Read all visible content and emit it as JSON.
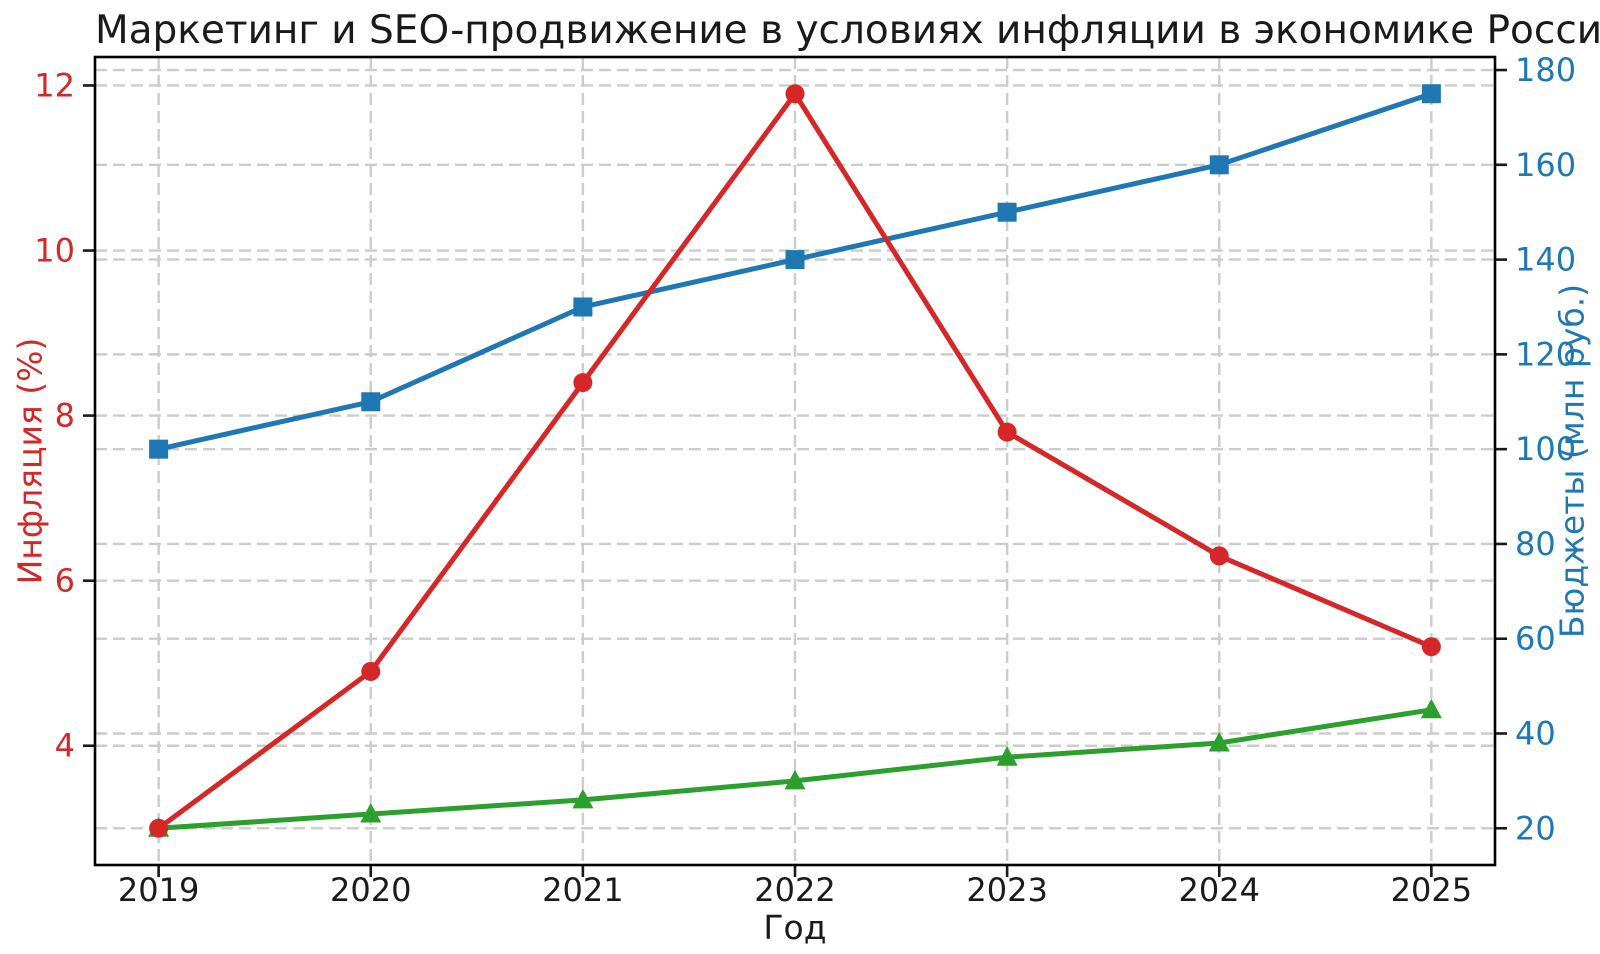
{
  "title": "Маркетинг и SEO-продвижение в условиях инфляции в экономике России",
  "chart_data": {
    "type": "line",
    "title": "Маркетинг и SEO-продвижение в условиях инфляции в экономике России",
    "xlabel": "Год",
    "x": [
      2019,
      2020,
      2021,
      2022,
      2023,
      2024,
      2025
    ],
    "x_tick_labels": [
      "2019",
      "2020",
      "2021",
      "2022",
      "2023",
      "2024",
      "2025"
    ],
    "xlim": [
      2018.7,
      2025.3
    ],
    "grid": true,
    "legend": "none",
    "background": "#ffffff",
    "grid_color": "#cccccc",
    "text_color": "#1a1a1a",
    "spine_color": "#000000",
    "axes": {
      "left": {
        "label": "Инфляция (%)",
        "color": "#d62728",
        "ticks": [
          4,
          6,
          8,
          10,
          12
        ],
        "lim": [
          2.555,
          12.345
        ]
      },
      "right": {
        "label": "Бюджеты (млн руб.)",
        "color": "#1f77b4",
        "ticks": [
          20,
          40,
          60,
          80,
          100,
          120,
          140,
          160,
          180
        ],
        "lim": [
          12.25,
          182.75
        ]
      }
    },
    "series": [
      {
        "id": "inflation",
        "name": "Инфляция (%)",
        "axis": "left",
        "color": "#d62728",
        "marker": "circle",
        "values": [
          3.0,
          4.9,
          8.4,
          11.9,
          7.8,
          6.3,
          5.2
        ]
      },
      {
        "id": "budgets",
        "name": "Бюджеты (млн руб.)",
        "axis": "right",
        "color": "#1f77b4",
        "marker": "square",
        "values": [
          100,
          110,
          130,
          140,
          150,
          160,
          175
        ]
      },
      {
        "id": "green-series",
        "name": "",
        "axis": "right",
        "color": "#2ca02c",
        "marker": "triangle-up",
        "values": [
          20,
          23,
          26,
          30,
          35,
          38,
          45
        ]
      }
    ]
  }
}
